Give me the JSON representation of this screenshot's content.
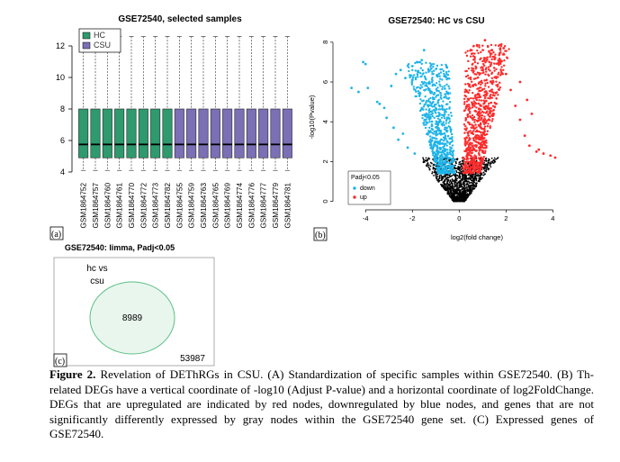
{
  "panel_a": {
    "title": "GSE72540, selected samples",
    "legend": [
      {
        "label": "HC",
        "color": "#2e9a6d"
      },
      {
        "label": "CSU",
        "color": "#7b6fb5"
      }
    ],
    "panel_label": "(a)",
    "chart_data": {
      "type": "box",
      "title": "GSE72540, selected samples",
      "ylim": [
        3.6,
        13.2
      ],
      "yticks": [
        4,
        6,
        8,
        10,
        12
      ],
      "categories": [
        "GSM1864752",
        "GSM1864757",
        "GSM1864760",
        "GSM1864761",
        "GSM1864770",
        "GSM1864772",
        "GSM1864773",
        "GSM1864782",
        "GSM1864755",
        "GSM1864759",
        "GSM1864763",
        "GSM1864765",
        "GSM1864769",
        "GSM1864774",
        "GSM1864776",
        "GSM1864777",
        "GSM1864779",
        "GSM1864781"
      ],
      "groups": [
        "HC",
        "HC",
        "HC",
        "HC",
        "HC",
        "HC",
        "HC",
        "HC",
        "CSU",
        "CSU",
        "CSU",
        "CSU",
        "CSU",
        "CSU",
        "CSU",
        "CSU",
        "CSU",
        "CSU"
      ],
      "q1": 4.9,
      "median": 5.75,
      "q3": 8.0,
      "whisker_low": 4.1,
      "whisker_high": 12.6
    }
  },
  "panel_b": {
    "title": "GSE72540: HC vs CSU",
    "panel_label": "(b)",
    "legend_title": "Padj<0.05",
    "legend": [
      {
        "label": "down",
        "color": "#1fb4e8"
      },
      {
        "label": "up",
        "color": "#ff2a2a"
      }
    ],
    "chart_data": {
      "type": "scatter",
      "title": "GSE72540: HC vs CSU",
      "xlabel": "log2(fold change)",
      "ylabel": "-log10(Pvalue)",
      "xlim": [
        -5.2,
        4.6
      ],
      "ylim": [
        -0.2,
        8.4
      ],
      "xticks": [
        -4,
        -2,
        0,
        2,
        4
      ],
      "yticks": [
        0,
        2,
        4,
        6,
        8
      ],
      "series": [
        {
          "name": "down",
          "color": "#1fb4e8",
          "points": [
            [
              -4.1,
              7.0
            ],
            [
              -4.0,
              6.9
            ],
            [
              -4.3,
              5.5
            ],
            [
              -3.9,
              5.7
            ],
            [
              -3.5,
              5.0
            ],
            [
              -3.4,
              4.9
            ],
            [
              -3.2,
              4.7
            ],
            [
              -4.6,
              5.7
            ],
            [
              -2.9,
              5.8
            ],
            [
              -2.7,
              6.4
            ],
            [
              -2.5,
              6.6
            ],
            [
              -2.3,
              6.2
            ],
            [
              -2.0,
              6.8
            ],
            [
              -1.8,
              7.0
            ],
            [
              -1.6,
              7.1
            ],
            [
              -1.5,
              7.6
            ],
            [
              -3.1,
              4.2
            ],
            [
              -2.8,
              3.7
            ],
            [
              -2.6,
              3.1
            ],
            [
              -2.4,
              3.4
            ],
            [
              -2.2,
              2.7
            ],
            [
              -1.9,
              2.4
            ],
            [
              -1.7,
              5.3
            ]
          ]
        },
        {
          "name": "up",
          "color": "#ff2a2a",
          "points": [
            [
              1.1,
              8.1
            ],
            [
              1.4,
              7.6
            ],
            [
              1.7,
              7.0
            ],
            [
              2.0,
              6.4
            ],
            [
              2.2,
              5.6
            ],
            [
              2.4,
              4.8
            ],
            [
              2.6,
              4.1
            ],
            [
              2.8,
              3.3
            ],
            [
              3.0,
              2.8
            ],
            [
              3.3,
              2.5
            ],
            [
              3.6,
              2.4
            ],
            [
              3.9,
              2.3
            ],
            [
              4.1,
              2.2
            ],
            [
              3.4,
              2.6
            ],
            [
              2.9,
              5.1
            ],
            [
              3.1,
              4.4
            ],
            [
              1.9,
              7.7
            ],
            [
              2.6,
              6.0
            ]
          ]
        }
      ]
    }
  },
  "panel_c": {
    "title": "GSE72540: limma, Padj<0.05",
    "set_label_line1": "hc vs",
    "set_label_line2": "csu",
    "set_count": "8989",
    "outside_count": "53987",
    "panel_label": "(c)"
  },
  "caption": {
    "lead": "Figure 2.",
    "text": "Revelation of DEThRGs in CSU. (A) Standardization of specific samples within GSE72540. (B) Th-related DEGs have a vertical coordinate of -log10 (Adjust P-value) and a horizontal coordinate of log2FoldChange. DEGs that are upregulated are indicated by red nodes, downregulated by blue nodes, and genes that are not significantly differently expressed by gray nodes within the GSE72540 gene set. (C) Expressed genes of GSE72540."
  }
}
